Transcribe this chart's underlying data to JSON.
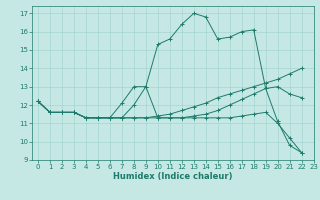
{
  "xlabel": "Humidex (Indice chaleur)",
  "xlim": [
    -0.5,
    23
  ],
  "ylim": [
    9,
    17.4
  ],
  "xticks": [
    0,
    1,
    2,
    3,
    4,
    5,
    6,
    7,
    8,
    9,
    10,
    11,
    12,
    13,
    14,
    15,
    16,
    17,
    18,
    19,
    20,
    21,
    22,
    23
  ],
  "yticks": [
    9,
    10,
    11,
    12,
    13,
    14,
    15,
    16,
    17
  ],
  "bg_color": "#c5e8e5",
  "line_color": "#1e7a6a",
  "grid_color": "#9ecfcc",
  "lines": [
    {
      "x": [
        0,
        1,
        2,
        3,
        4,
        5,
        6,
        7,
        8,
        9,
        10,
        11,
        12,
        13,
        14,
        15,
        16,
        17,
        18,
        19,
        20,
        21,
        22
      ],
      "y": [
        12.2,
        11.6,
        11.6,
        11.6,
        11.3,
        11.3,
        11.3,
        11.3,
        12.0,
        13.0,
        15.3,
        15.6,
        16.4,
        17.0,
        16.8,
        15.6,
        15.7,
        16.0,
        16.1,
        12.9,
        11.1,
        9.8,
        9.4
      ]
    },
    {
      "x": [
        0,
        1,
        2,
        3,
        4,
        5,
        6,
        7,
        8,
        9,
        10,
        11,
        12,
        13,
        14,
        15,
        16,
        17,
        18,
        19,
        20,
        21,
        22
      ],
      "y": [
        12.2,
        11.6,
        11.6,
        11.6,
        11.3,
        11.3,
        11.3,
        12.1,
        13.0,
        13.0,
        11.3,
        11.3,
        11.3,
        11.4,
        11.5,
        11.7,
        12.0,
        12.3,
        12.6,
        12.9,
        13.0,
        12.6,
        12.4
      ]
    },
    {
      "x": [
        0,
        1,
        2,
        3,
        4,
        5,
        6,
        7,
        8,
        9,
        10,
        11,
        12,
        13,
        14,
        15,
        16,
        17,
        18,
        19,
        20,
        21,
        22
      ],
      "y": [
        12.2,
        11.6,
        11.6,
        11.6,
        11.3,
        11.3,
        11.3,
        11.3,
        11.3,
        11.3,
        11.4,
        11.5,
        11.7,
        11.9,
        12.1,
        12.4,
        12.6,
        12.8,
        13.0,
        13.2,
        13.4,
        13.7,
        14.0
      ]
    },
    {
      "x": [
        0,
        1,
        2,
        3,
        4,
        5,
        6,
        7,
        8,
        9,
        10,
        11,
        12,
        13,
        14,
        15,
        16,
        17,
        18,
        19,
        20,
        21,
        22
      ],
      "y": [
        12.2,
        11.6,
        11.6,
        11.6,
        11.3,
        11.3,
        11.3,
        11.3,
        11.3,
        11.3,
        11.3,
        11.3,
        11.3,
        11.3,
        11.3,
        11.3,
        11.3,
        11.4,
        11.5,
        11.6,
        11.0,
        10.2,
        9.4
      ]
    }
  ],
  "tick_fontsize": 5.0,
  "xlabel_fontsize": 6.0
}
